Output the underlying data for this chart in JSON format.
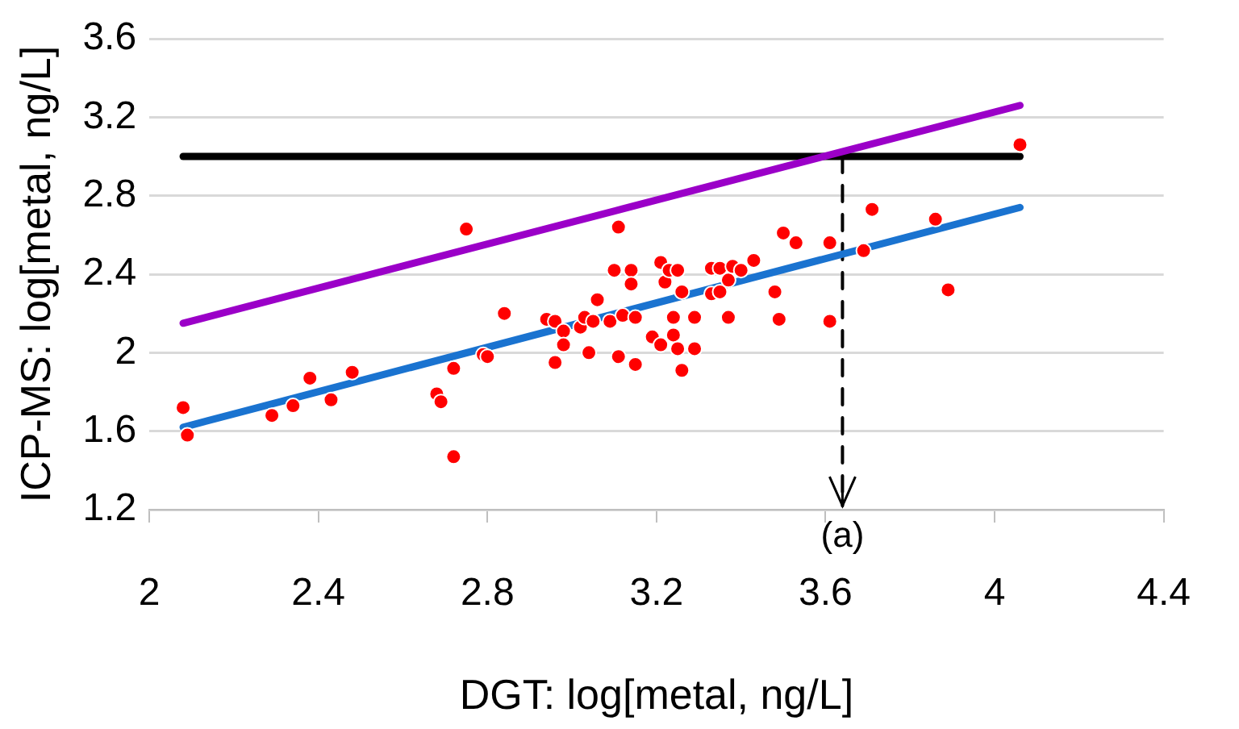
{
  "chart_data": {
    "type": "scatter",
    "xlabel": "DGT: log[metal, ng/L]",
    "ylabel": "ICP-MS: log[metal, ng/L]",
    "xlim": [
      2,
      4.4
    ],
    "xticks": [
      2,
      2.4,
      2.8,
      3.2,
      3.6,
      4,
      4.4
    ],
    "ylim": [
      1.2,
      3.6
    ],
    "yticks": [
      1.2,
      1.6,
      2,
      2.4,
      2.8,
      3.2,
      3.6
    ],
    "grid": "y",
    "legend": false,
    "series": [
      {
        "type": "scatter",
        "color": "#ff0000",
        "x": [
          2.08,
          2.09,
          2.29,
          2.34,
          2.38,
          2.43,
          2.48,
          2.68,
          2.69,
          2.72,
          2.72,
          2.75,
          2.79,
          2.8,
          2.84,
          2.94,
          2.96,
          2.96,
          2.98,
          2.98,
          3.02,
          3.03,
          3.04,
          3.05,
          3.06,
          3.09,
          3.11,
          3.12,
          3.1,
          3.11,
          3.14,
          3.14,
          3.15,
          3.15,
          3.19,
          3.21,
          3.21,
          3.22,
          3.23,
          3.25,
          3.24,
          3.24,
          3.25,
          3.26,
          3.26,
          3.29,
          3.29,
          3.33,
          3.33,
          3.35,
          3.35,
          3.37,
          3.37,
          3.38,
          3.4,
          3.43,
          3.48,
          3.49,
          3.5,
          3.53,
          3.61,
          3.61,
          3.71,
          3.69,
          3.86,
          3.89,
          4.06
        ],
        "values": [
          1.72,
          1.58,
          1.68,
          1.73,
          1.87,
          1.76,
          1.9,
          1.79,
          1.75,
          1.92,
          1.47,
          2.63,
          1.99,
          1.98,
          2.2,
          2.17,
          1.95,
          2.16,
          2.11,
          2.04,
          2.13,
          2.18,
          2,
          2.16,
          2.27,
          2.16,
          1.98,
          2.19,
          2.42,
          2.64,
          2.42,
          2.35,
          1.94,
          2.18,
          2.08,
          2.04,
          2.46,
          2.36,
          2.42,
          2.42,
          2.09,
          2.18,
          2.02,
          1.91,
          2.31,
          2.02,
          2.18,
          2.3,
          2.43,
          2.43,
          2.31,
          2.37,
          2.18,
          2.44,
          2.42,
          2.47,
          2.31,
          2.17,
          2.61,
          2.56,
          2.56,
          2.16,
          2.73,
          2.52,
          2.68,
          2.32,
          3.06
        ]
      },
      {
        "type": "line",
        "color": "#1a73d0",
        "x": [
          2.08,
          4.06
        ],
        "values": [
          1.62,
          2.74
        ]
      },
      {
        "type": "line",
        "color": "#9b00c8",
        "x": [
          2.08,
          4.06
        ],
        "values": [
          2.15,
          3.26
        ]
      },
      {
        "type": "line",
        "color": "#000000",
        "x": [
          2.08,
          4.06
        ],
        "values": [
          3,
          3
        ]
      },
      {
        "type": "line",
        "color": "#000000",
        "line_style": "dashed",
        "x": [
          3.64,
          3.64
        ],
        "values": [
          3,
          1.22
        ]
      }
    ],
    "annotations": [
      {
        "text": "(a)",
        "x": 3.64,
        "y": 1.2
      }
    ]
  }
}
